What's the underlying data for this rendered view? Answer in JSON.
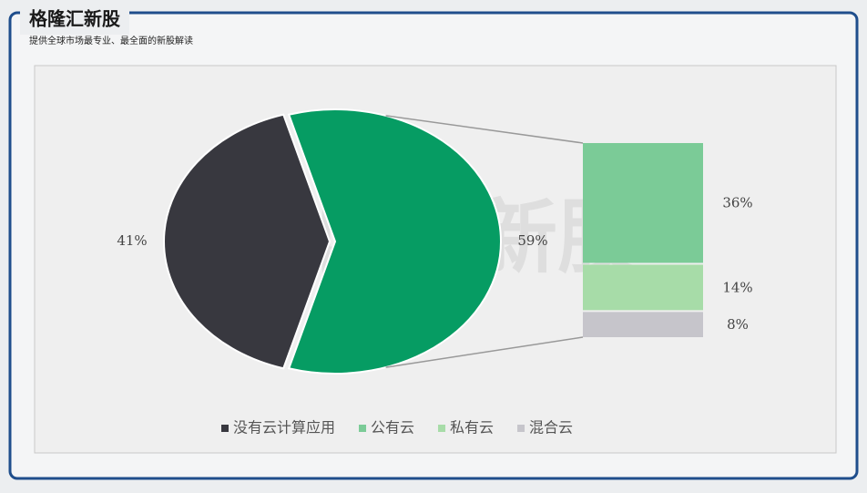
{
  "header": {
    "title": "格隆汇新股",
    "subtitle": "提供全球市场最专业、最全面的新股解读"
  },
  "chart_data": {
    "type": "pie-of-bar",
    "pie": {
      "categories": [
        "没有云计算应用",
        null
      ],
      "values": [
        41,
        59
      ],
      "value_labels": [
        "41%",
        "59%"
      ],
      "colors": [
        "#38383f",
        "#069c63"
      ]
    },
    "bar": {
      "categories": [
        "公有云",
        "私有云",
        "混合云"
      ],
      "values": [
        36,
        14,
        8
      ],
      "value_labels": [
        "36%",
        "14%",
        "8%"
      ],
      "colors": [
        "#7bcb97",
        "#a7dca8",
        "#c6c5cb"
      ]
    },
    "legend": "bottom"
  }
}
